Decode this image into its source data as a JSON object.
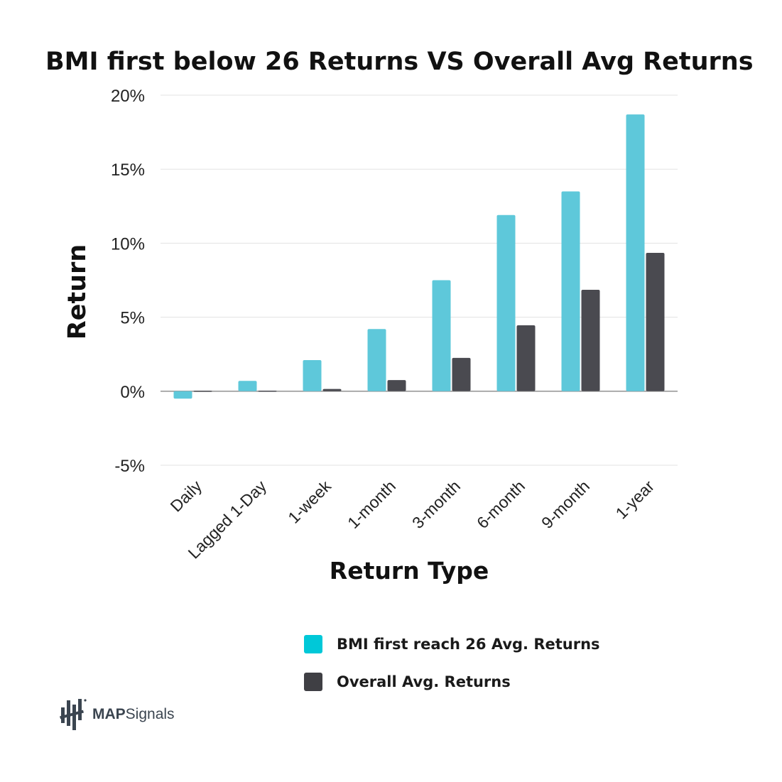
{
  "chart_data": {
    "type": "bar",
    "title": "BMI first below 26 Returns VS Overall Avg Returns",
    "xlabel": "Return Type",
    "ylabel": "Return",
    "categories": [
      "Daily",
      "Lagged 1-Day",
      "1-week",
      "1-month",
      "3-month",
      "6-month",
      "9-month",
      "1-year"
    ],
    "series": [
      {
        "name": "BMI first reach 26 Avg. Returns",
        "color": "#5ec8da",
        "values": [
          -0.5,
          0.7,
          2.1,
          4.2,
          7.5,
          11.9,
          13.5,
          18.7
        ]
      },
      {
        "name": "Overall Avg. Returns",
        "color": "#4a4a50",
        "values": [
          0.03,
          0.04,
          0.15,
          0.75,
          2.25,
          4.45,
          6.85,
          9.35
        ]
      }
    ],
    "ylim": [
      -5,
      20
    ],
    "yticks": [
      20,
      15,
      10,
      5,
      0,
      -5
    ],
    "ytick_labels": [
      "20%",
      "15%",
      "10%",
      "5%",
      "0%",
      "-5%"
    ],
    "grid": true,
    "legend_position": "bottom"
  },
  "brand": {
    "name_bold": "MAP",
    "name_rest": "Signals"
  }
}
